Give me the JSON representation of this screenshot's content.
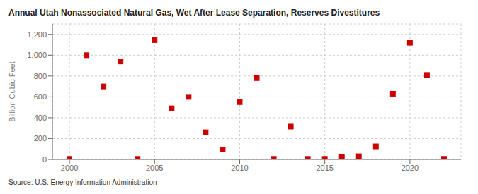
{
  "chart_data": {
    "type": "scatter",
    "title": "Annual Utah Nonassociated Natural Gas, Wet After Lease Separation, Reserves Divestitures",
    "y_label": "Billion Cubic Feet",
    "annotations": [
      "Source: U.S. Energy Information Administration"
    ],
    "x": [
      2000,
      2001,
      2002,
      2003,
      2004,
      2005,
      2006,
      2007,
      2008,
      2009,
      2010,
      2011,
      2012,
      2013,
      2014,
      2015,
      2016,
      2017,
      2018,
      2019,
      2020,
      2021,
      2022
    ],
    "values": [
      5,
      1000,
      700,
      940,
      5,
      1145,
      490,
      600,
      260,
      95,
      550,
      780,
      5,
      315,
      5,
      5,
      25,
      30,
      125,
      630,
      1120,
      810,
      5
    ],
    "color": "#cc0000",
    "marker": "square",
    "xlim": [
      1999,
      2023
    ],
    "ylim": [
      0,
      1300
    ],
    "xticks": [
      2000,
      2005,
      2010,
      2015,
      2020
    ],
    "yticks": [
      0,
      200,
      400,
      600,
      800,
      {
        "value": 1000,
        "label": "1,000"
      },
      {
        "value": 1200,
        "label": "1,200"
      }
    ],
    "grid": true
  }
}
